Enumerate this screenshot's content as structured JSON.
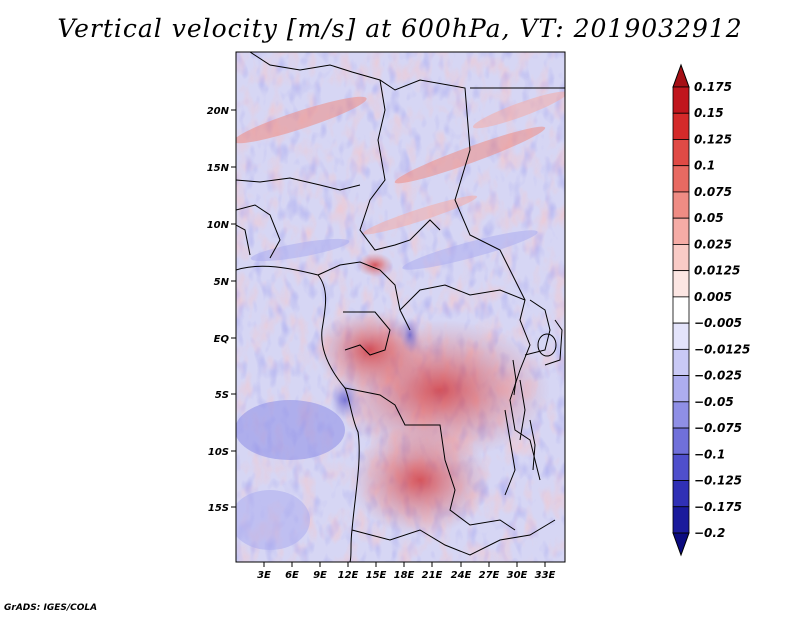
{
  "title": "Vertical velocity [m/s] at 600hPa, VT: 2019032912",
  "footer": "GrADS: IGES/COLA",
  "map": {
    "lat_labels": [
      "20N",
      "15N",
      "10N",
      "5N",
      "EQ",
      "5S",
      "10S",
      "15S"
    ],
    "lon_labels": [
      "3E",
      "6E",
      "9E",
      "12E",
      "15E",
      "18E",
      "21E",
      "24E",
      "27E",
      "30E",
      "33E"
    ]
  },
  "colorbar": {
    "labels": [
      "0.175",
      "0.15",
      "0.125",
      "0.1",
      "0.075",
      "0.05",
      "0.025",
      "0.0125",
      "0.005",
      "−0.005",
      "−0.0125",
      "−0.025",
      "−0.05",
      "−0.075",
      "−0.1",
      "−0.125",
      "−0.175",
      "−0.2"
    ],
    "colors": [
      "#a50f15",
      "#c0161d",
      "#d42a2a",
      "#e04a45",
      "#e86a62",
      "#ef8c84",
      "#f5aca6",
      "#f9cbc6",
      "#fce6e3",
      "#ffffff",
      "#e4e4fb",
      "#c9c9f5",
      "#adadef",
      "#8f8fe6",
      "#7070da",
      "#4f4fcc",
      "#3030b5",
      "#1a1a9c",
      "#0b0b80"
    ]
  }
}
